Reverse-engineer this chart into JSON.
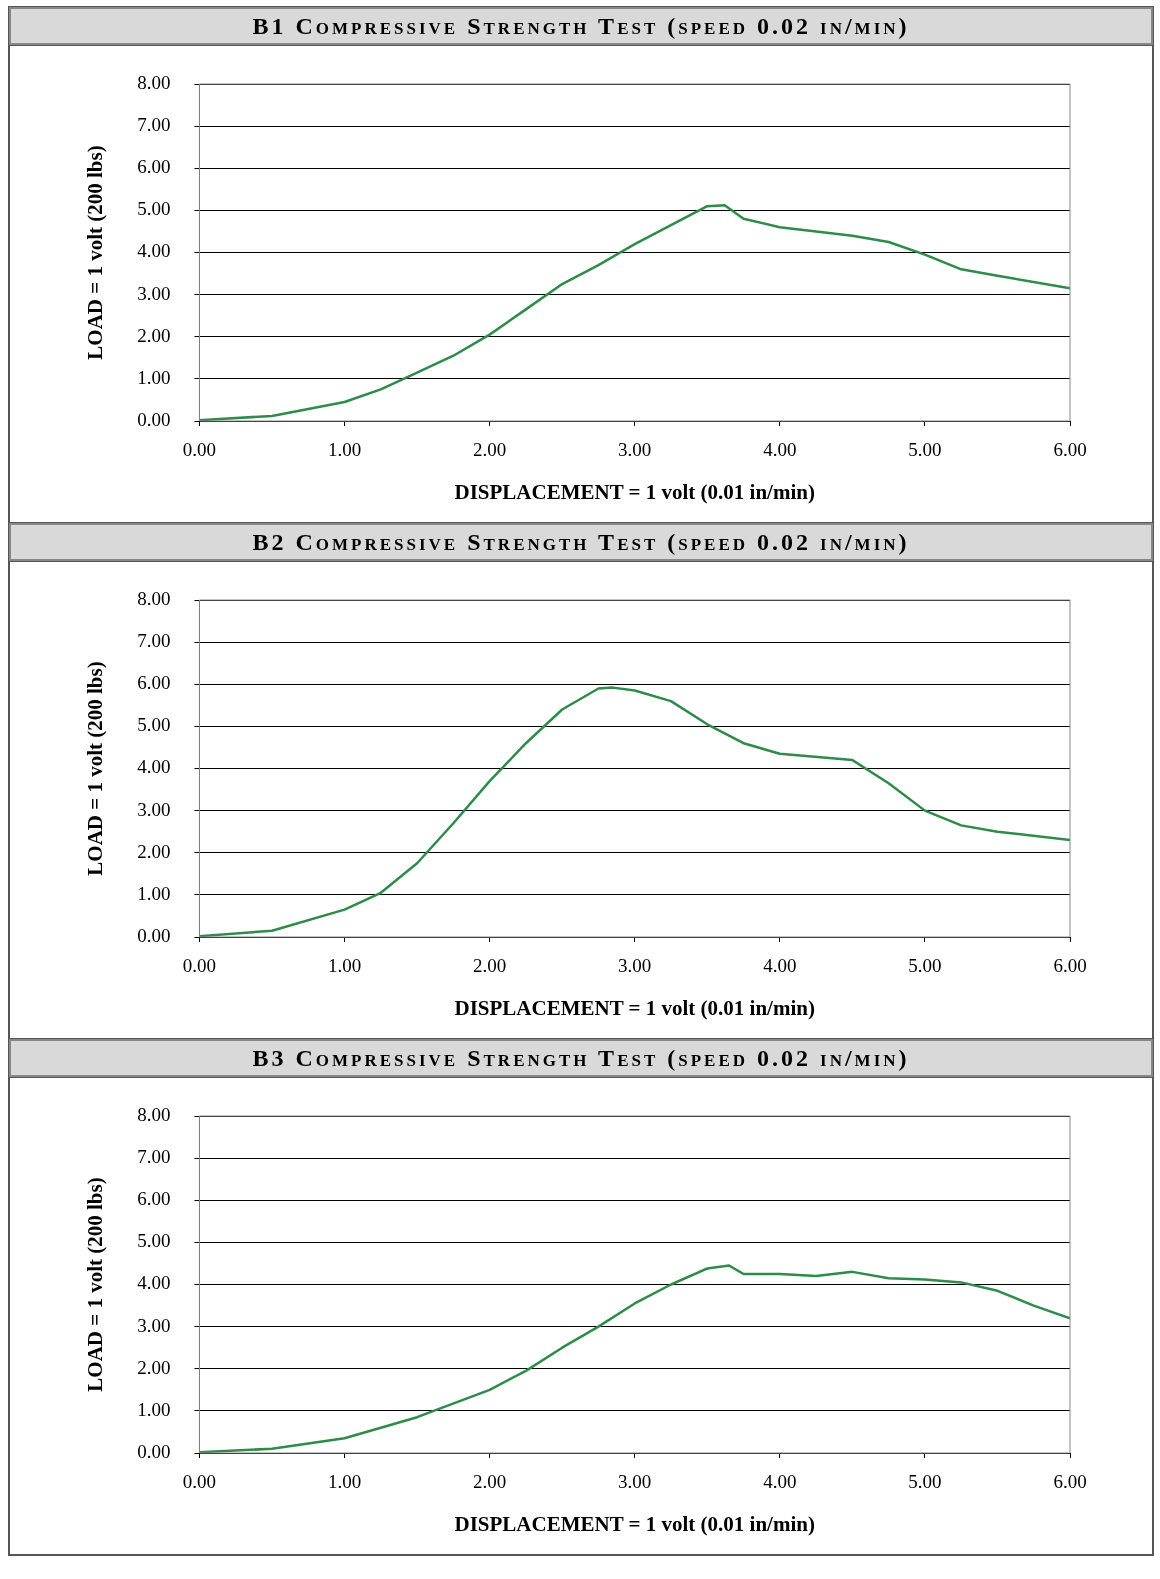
{
  "chart_data": [
    {
      "type": "line",
      "title": "B1 Compressive Strength Test (speed 0.02 in/min)",
      "xlabel": "DISPLACEMENT = 1 volt (0.01 in/min)",
      "ylabel": "LOAD = 1 volt (200 lbs)",
      "grid": "y",
      "legend": false,
      "marker": "none",
      "line_style": "solid",
      "xlim": [
        0,
        6
      ],
      "xticks": [
        {
          "value": 0,
          "label": "0.00"
        },
        {
          "value": 1,
          "label": "1.00"
        },
        {
          "value": 2,
          "label": "2.00"
        },
        {
          "value": 3,
          "label": "3.00"
        },
        {
          "value": 4,
          "label": "4.00"
        },
        {
          "value": 5,
          "label": "5.00"
        },
        {
          "value": 6,
          "label": "6.00"
        }
      ],
      "ylim": [
        0,
        8
      ],
      "yticks": [
        {
          "value": 0,
          "label": "0.00"
        },
        {
          "value": 1,
          "label": "1.00"
        },
        {
          "value": 2,
          "label": "2.00"
        },
        {
          "value": 3,
          "label": "3.00"
        },
        {
          "value": 4,
          "label": "4.00"
        },
        {
          "value": 5,
          "label": "5.00"
        },
        {
          "value": 6,
          "label": "6.00"
        },
        {
          "value": 7,
          "label": "7.00"
        },
        {
          "value": 8,
          "label": "8.00"
        }
      ],
      "x": [
        0,
        0.5,
        1,
        1.25,
        1.5,
        1.75,
        2,
        2.25,
        2.5,
        2.75,
        3,
        3.25,
        3.5,
        3.62,
        3.75,
        4,
        4.5,
        4.75,
        5,
        5.25,
        5.5,
        6
      ],
      "series": [
        {
          "color": "#2e8b4a",
          "values": [
            0.02,
            0.12,
            0.45,
            0.75,
            1.15,
            1.55,
            2.05,
            2.65,
            3.25,
            3.7,
            4.2,
            4.65,
            5.1,
            5.12,
            4.8,
            4.6,
            4.4,
            4.25,
            3.95,
            3.6,
            3.45,
            3.15
          ]
        }
      ]
    },
    {
      "type": "line",
      "title": "B2 Compressive Strength Test (speed 0.02 in/min)",
      "xlabel": "DISPLACEMENT = 1 volt (0.01 in/min)",
      "ylabel": "LOAD = 1 volt (200 lbs)",
      "grid": "y",
      "legend": false,
      "marker": "none",
      "line_style": "solid",
      "xlim": [
        0,
        6
      ],
      "xticks": [
        {
          "value": 0,
          "label": "0.00"
        },
        {
          "value": 1,
          "label": "1.00"
        },
        {
          "value": 2,
          "label": "2.00"
        },
        {
          "value": 3,
          "label": "3.00"
        },
        {
          "value": 4,
          "label": "4.00"
        },
        {
          "value": 5,
          "label": "5.00"
        },
        {
          "value": 6,
          "label": "6.00"
        }
      ],
      "ylim": [
        0,
        8
      ],
      "yticks": [
        {
          "value": 0,
          "label": "0.00"
        },
        {
          "value": 1,
          "label": "1.00"
        },
        {
          "value": 2,
          "label": "2.00"
        },
        {
          "value": 3,
          "label": "3.00"
        },
        {
          "value": 4,
          "label": "4.00"
        },
        {
          "value": 5,
          "label": "5.00"
        },
        {
          "value": 6,
          "label": "6.00"
        },
        {
          "value": 7,
          "label": "7.00"
        },
        {
          "value": 8,
          "label": "8.00"
        }
      ],
      "x": [
        0,
        0.5,
        1,
        1.25,
        1.5,
        1.75,
        2,
        2.25,
        2.5,
        2.75,
        2.85,
        3,
        3.25,
        3.5,
        3.75,
        4,
        4.5,
        4.75,
        5,
        5.25,
        5.5,
        6
      ],
      "series": [
        {
          "color": "#2e8b4a",
          "values": [
            0.02,
            0.15,
            0.65,
            1.05,
            1.75,
            2.7,
            3.7,
            4.6,
            5.4,
            5.9,
            5.92,
            5.85,
            5.6,
            5.05,
            4.6,
            4.35,
            4.2,
            3.65,
            3.0,
            2.65,
            2.5,
            2.3
          ]
        }
      ]
    },
    {
      "type": "line",
      "title": "B3 Compressive Strength Test (speed 0.02 in/min)",
      "xlabel": "DISPLACEMENT = 1 volt (0.01 in/min)",
      "ylabel": "LOAD = 1 volt (200 lbs)",
      "grid": "y",
      "legend": false,
      "marker": "none",
      "line_style": "solid",
      "xlim": [
        0,
        6
      ],
      "xticks": [
        {
          "value": 0,
          "label": "0.00"
        },
        {
          "value": 1,
          "label": "1.00"
        },
        {
          "value": 2,
          "label": "2.00"
        },
        {
          "value": 3,
          "label": "3.00"
        },
        {
          "value": 4,
          "label": "4.00"
        },
        {
          "value": 5,
          "label": "5.00"
        },
        {
          "value": 6,
          "label": "6.00"
        }
      ],
      "ylim": [
        0,
        8
      ],
      "yticks": [
        {
          "value": 0,
          "label": "0.00"
        },
        {
          "value": 1,
          "label": "1.00"
        },
        {
          "value": 2,
          "label": "2.00"
        },
        {
          "value": 3,
          "label": "3.00"
        },
        {
          "value": 4,
          "label": "4.00"
        },
        {
          "value": 5,
          "label": "5.00"
        },
        {
          "value": 6,
          "label": "6.00"
        },
        {
          "value": 7,
          "label": "7.00"
        },
        {
          "value": 8,
          "label": "8.00"
        }
      ],
      "x": [
        0,
        0.5,
        1,
        1.5,
        2,
        2.25,
        2.5,
        2.75,
        3,
        3.25,
        3.5,
        3.65,
        3.75,
        4,
        4.25,
        4.5,
        4.75,
        5,
        5.25,
        5.5,
        5.75,
        6
      ],
      "series": [
        {
          "color": "#2e8b4a",
          "values": [
            0.02,
            0.1,
            0.35,
            0.85,
            1.5,
            1.95,
            2.5,
            3.0,
            3.55,
            4.0,
            4.38,
            4.45,
            4.25,
            4.25,
            4.2,
            4.3,
            4.15,
            4.12,
            4.05,
            3.85,
            3.5,
            3.2
          ]
        }
      ]
    }
  ]
}
